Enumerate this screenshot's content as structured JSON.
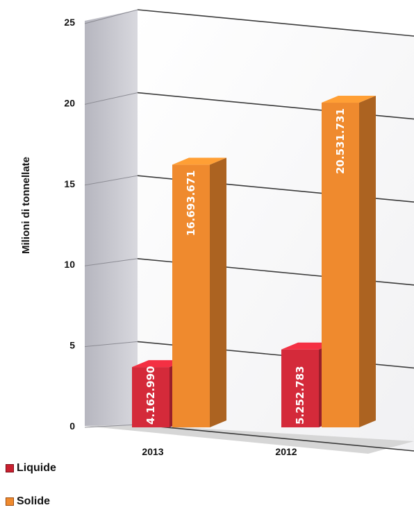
{
  "chart_data": {
    "type": "bar",
    "title": "",
    "xlabel": "",
    "ylabel": "Milioni di tonnellate",
    "ylim": [
      0,
      25
    ],
    "yticks": [
      "0",
      "5",
      "10",
      "15",
      "20",
      "25"
    ],
    "categories": [
      "2013",
      "2012"
    ],
    "series": [
      {
        "name": "Liquide",
        "values": [
          4.16299,
          5.252783
        ],
        "labels": [
          "4.162.990",
          "5.252.783"
        ],
        "color": "#d42a3a"
      },
      {
        "name": "Solide",
        "values": [
          16.693671,
          20.531731
        ],
        "labels": [
          "16.693.671",
          "20.531.731"
        ],
        "color": "#ef8a2e"
      }
    ],
    "grid": true,
    "legend_position": "bottom-left",
    "style": "3d-columns"
  }
}
